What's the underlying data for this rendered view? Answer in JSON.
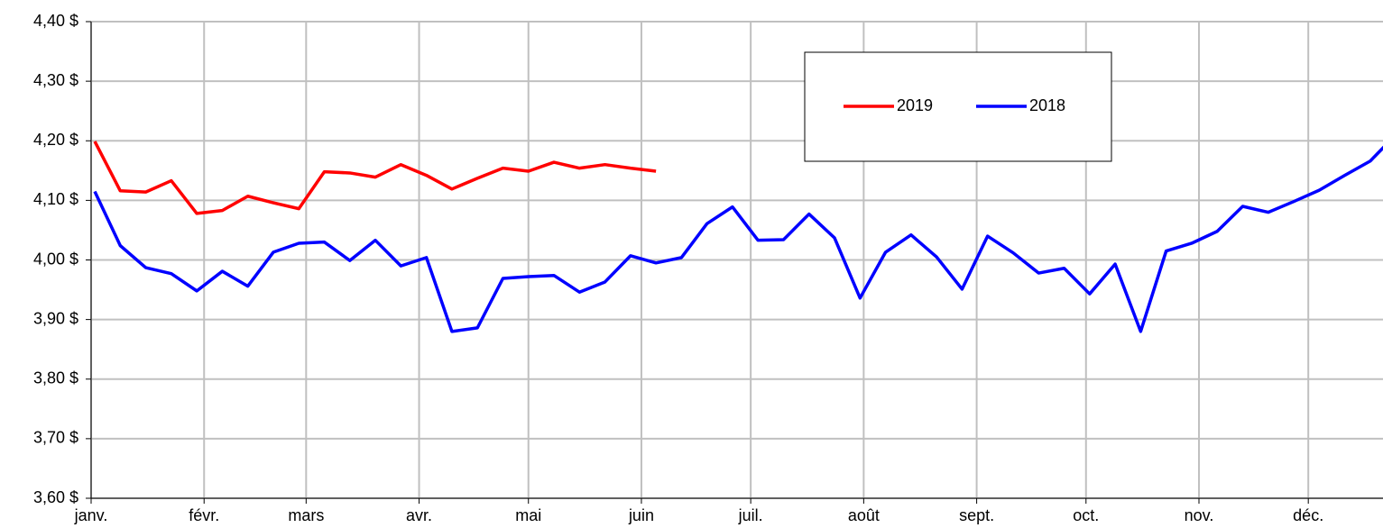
{
  "chart_data": {
    "type": "line",
    "x": [
      1,
      8,
      15,
      22,
      29,
      36,
      43,
      50,
      57,
      64,
      71,
      78,
      85,
      92,
      99,
      106,
      113,
      120,
      127,
      134,
      141,
      148,
      155,
      162,
      169,
      176,
      183,
      190,
      197,
      204,
      211,
      218,
      225,
      232,
      239,
      246,
      253,
      260,
      267,
      274,
      281,
      288,
      295,
      302,
      309,
      316,
      323,
      330,
      337,
      344,
      351,
      358
    ],
    "series": [
      {
        "name": "2019",
        "color": "#ff0000",
        "values": [
          4.199,
          4.116,
          4.114,
          4.133,
          4.078,
          4.083,
          4.107,
          4.096,
          4.086,
          4.148,
          4.146,
          4.139,
          4.16,
          4.142,
          4.119,
          4.137,
          4.154,
          4.149,
          4.164,
          4.154,
          4.16,
          4.154,
          4.149,
          null,
          null,
          null,
          null,
          null,
          null,
          null,
          null,
          null,
          null,
          null,
          null,
          null,
          null,
          null,
          null,
          null,
          null,
          null,
          null,
          null,
          null,
          null,
          null,
          null,
          null,
          null,
          null,
          null
        ]
      },
      {
        "name": "2018",
        "color": "#0000ff",
        "values": [
          4.115,
          4.024,
          3.987,
          3.977,
          3.948,
          3.981,
          3.956,
          4.013,
          4.028,
          4.03,
          3.999,
          4.033,
          3.99,
          4.004,
          3.88,
          3.886,
          3.969,
          3.972,
          3.974,
          3.946,
          3.963,
          4.007,
          3.995,
          4.004,
          4.061,
          4.089,
          4.033,
          4.034,
          4.077,
          4.037,
          3.936,
          4.013,
          4.042,
          4.005,
          3.951,
          4.04,
          4.012,
          3.978,
          3.986,
          3.943,
          3.993,
          3.88,
          4.015,
          4.028,
          4.048,
          4.09,
          4.08,
          4.098,
          4.117,
          4.142,
          4.166,
          4.21
        ]
      }
    ],
    "xlim": [
      0,
      354.5
    ],
    "xticks": [
      {
        "value": 0,
        "label": "janv."
      },
      {
        "value": 31,
        "label": "févr."
      },
      {
        "value": 59,
        "label": "mars"
      },
      {
        "value": 90,
        "label": "avr."
      },
      {
        "value": 120,
        "label": "mai"
      },
      {
        "value": 151,
        "label": "juin"
      },
      {
        "value": 181,
        "label": "juil."
      },
      {
        "value": 212,
        "label": "août"
      },
      {
        "value": 243,
        "label": "sept."
      },
      {
        "value": 273,
        "label": "oct."
      },
      {
        "value": 304,
        "label": "nov."
      },
      {
        "value": 334,
        "label": "déc."
      }
    ],
    "ylim": [
      3.6,
      4.4
    ],
    "yticks": [
      {
        "value": 3.6,
        "label": "3,60 $"
      },
      {
        "value": 3.7,
        "label": "3,70 $"
      },
      {
        "value": 3.8,
        "label": "3,80 $"
      },
      {
        "value": 3.9,
        "label": "3,90 $"
      },
      {
        "value": 4.0,
        "label": "4,00 $"
      },
      {
        "value": 4.1,
        "label": "4,10 $"
      },
      {
        "value": 4.2,
        "label": "4,20 $"
      },
      {
        "value": 4.3,
        "label": "4,30 $"
      },
      {
        "value": 4.4,
        "label": "4,40 $"
      }
    ],
    "grid": true,
    "legend": "top-right"
  }
}
